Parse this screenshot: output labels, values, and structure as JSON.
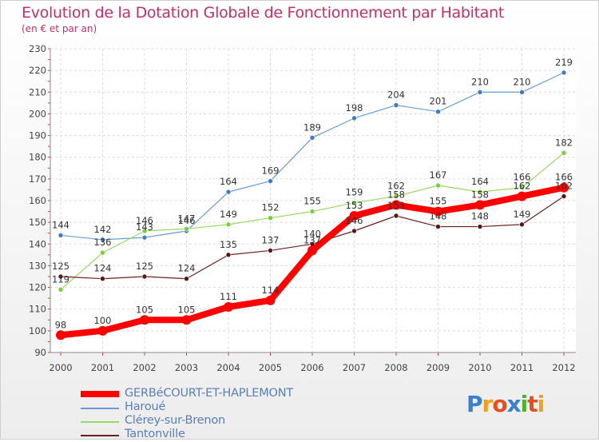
{
  "header": {
    "title": "Evolution de la Dotation Globale de Fonctionnement par Habitant",
    "subtitle": "(en € et par an)"
  },
  "logo": {
    "p": "P",
    "r": "r",
    "o": "o",
    "x": "x",
    "i": "i",
    "t": "t",
    "i2": "i"
  },
  "chart_data": {
    "type": "line",
    "title": "Evolution de la Dotation Globale de Fonctionnement par Habitant",
    "subtitle": "(en € et par an)",
    "x": [
      "2000",
      "2001",
      "2002",
      "2003",
      "2004",
      "2005",
      "2006",
      "2007",
      "2008",
      "2009",
      "2010",
      "2011",
      "2012"
    ],
    "yticks": [
      "90",
      "100",
      "110",
      "120",
      "130",
      "140",
      "150",
      "160",
      "170",
      "180",
      "190",
      "200",
      "210",
      "220",
      "230"
    ],
    "ylim": [
      90,
      230
    ],
    "grid": true,
    "legend_position": "bottom-left",
    "series": [
      {
        "name": "GERBéCOURT-ET-HAPLEMONT",
        "color": "#ff0000",
        "values": [
          98,
          100,
          105,
          105,
          111,
          114,
          137,
          153,
          158,
          155,
          158,
          162,
          166
        ],
        "labels": [
          "98",
          "100",
          "105",
          "105",
          "111",
          "114",
          "137",
          "153",
          "158",
          "155",
          "158",
          "162",
          "166"
        ]
      },
      {
        "name": "Haroué",
        "color": "#6a9bd0",
        "values": [
          144,
          142,
          143,
          146,
          164,
          169,
          189,
          198,
          204,
          201,
          210,
          210,
          219
        ],
        "labels": [
          "144",
          "142",
          "143",
          "146",
          "164",
          "169",
          "189",
          "198",
          "204",
          "201",
          "210",
          "210",
          "219"
        ]
      },
      {
        "name": "Clérey-sur-Brenon",
        "color": "#99d966",
        "values": [
          119,
          136,
          146,
          147,
          149,
          152,
          155,
          159,
          162,
          167,
          164,
          166,
          182
        ],
        "labels": [
          "119",
          "136",
          "146",
          "147",
          "149",
          "152",
          "155",
          "159",
          "162",
          "167",
          "164",
          "166",
          "182"
        ]
      },
      {
        "name": "Tantonville",
        "color": "#6b2020",
        "values": [
          125,
          124,
          125,
          124,
          135,
          137,
          140,
          146,
          153,
          148,
          148,
          149,
          162
        ],
        "labels": [
          "125",
          "124",
          "125",
          "124",
          "135",
          "137",
          "140",
          "146",
          "153",
          "148",
          "148",
          "149",
          "162"
        ]
      }
    ]
  }
}
